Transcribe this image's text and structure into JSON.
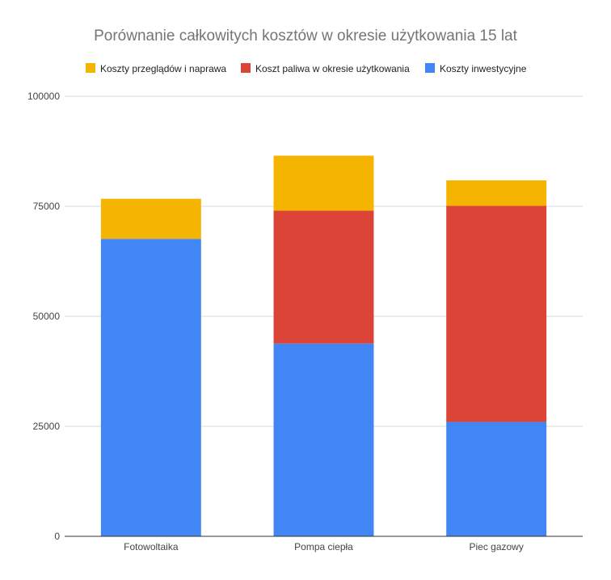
{
  "chart_data": {
    "type": "bar",
    "stacked": true,
    "title": "Porównanie całkowitych kosztów w okresie użytkowania 15 lat",
    "xlabel": "",
    "ylabel": "",
    "categories": [
      "Fotowoltaika",
      "Pompa ciepła",
      "Piec gazowy"
    ],
    "series": [
      {
        "name": "Koszty inwestycyjne",
        "color": "#4285f4",
        "values": [
          67600,
          43800,
          26000
        ]
      },
      {
        "name": "Koszt paliwa w okresie użytkowania",
        "color": "#db4437",
        "values": [
          0,
          30200,
          49100
        ]
      },
      {
        "name": "Koszty przeglądów i naprawa",
        "color": "#f4b400",
        "values": [
          9100,
          12500,
          5800
        ]
      }
    ],
    "legend_order": [
      "Koszty przeglądów i naprawa",
      "Koszt paliwa w okresie użytkowania",
      "Koszty inwestycyjne"
    ],
    "legend_position": "top",
    "ylim": [
      0,
      100000
    ],
    "yticks": [
      0,
      25000,
      50000,
      75000,
      100000
    ],
    "ytick_labels": [
      "0",
      "25000",
      "50000",
      "75000",
      "100000"
    ],
    "grid": true
  }
}
